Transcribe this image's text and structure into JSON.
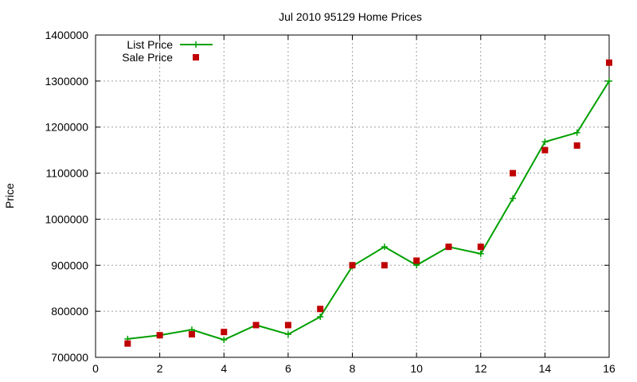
{
  "chart_data": {
    "type": "line",
    "title": "Jul 2010 95129 Home Prices",
    "xlabel": "",
    "ylabel": "Price",
    "xlim": [
      0,
      16
    ],
    "ylim": [
      700000,
      1400000
    ],
    "xticks": [
      0,
      2,
      4,
      6,
      8,
      10,
      12,
      14,
      16
    ],
    "yticks": [
      700000,
      800000,
      900000,
      1000000,
      1100000,
      1200000,
      1300000,
      1400000
    ],
    "grid": true,
    "legend": "top-left",
    "series": [
      {
        "name": "List Price",
        "style": "line-with-plus-markers",
        "color": "#00a000",
        "x": [
          1,
          2,
          3,
          4,
          5,
          6,
          7,
          8,
          9,
          10,
          11,
          12,
          13,
          14,
          15,
          16
        ],
        "y": [
          740000,
          748000,
          760000,
          738000,
          770000,
          750000,
          788000,
          898000,
          940000,
          900000,
          940000,
          925000,
          1045000,
          1168000,
          1188000,
          1300000
        ]
      },
      {
        "name": "Sale Price",
        "style": "square-markers",
        "color": "#c00000",
        "x": [
          1,
          2,
          3,
          4,
          5,
          6,
          7,
          8,
          9,
          10,
          11,
          12,
          13,
          14,
          15,
          16
        ],
        "y": [
          730000,
          748000,
          750000,
          755000,
          770000,
          770000,
          805000,
          900000,
          900000,
          910000,
          940000,
          940000,
          1100000,
          1150000,
          1160000,
          1340000
        ]
      }
    ]
  }
}
